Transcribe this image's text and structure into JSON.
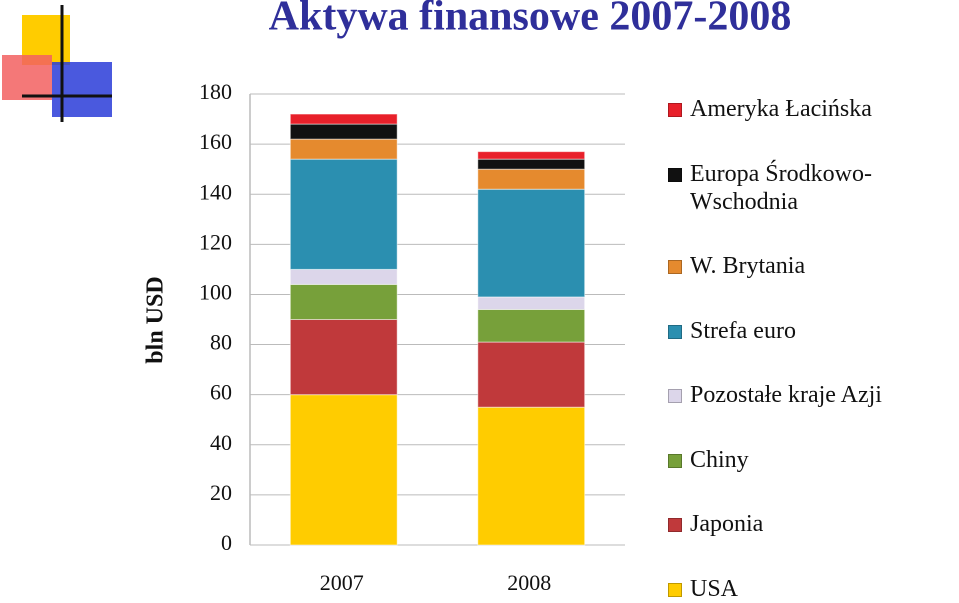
{
  "chart_data": {
    "type": "stacked_bar",
    "title": "Aktywa finansowe 2007-2008",
    "y_label": "bln USD",
    "categories": [
      "2007",
      "2008"
    ],
    "series": [
      {
        "name": "USA",
        "color": "#ffcc00",
        "values": [
          60,
          55
        ]
      },
      {
        "name": "Japonia",
        "color": "#c0393b",
        "values": [
          30,
          26
        ]
      },
      {
        "name": "Chiny",
        "color": "#77a03a",
        "values": [
          14,
          13
        ]
      },
      {
        "name": "Pozostałe kraje Azji",
        "color": "#dcd6ea",
        "values": [
          6,
          5
        ]
      },
      {
        "name": "Strefa euro",
        "color": "#2b8fb0",
        "values": [
          44,
          43
        ]
      },
      {
        "name": "W. Brytania",
        "color": "#e58a2e",
        "values": [
          8,
          8
        ]
      },
      {
        "name": "Europa Środkowo-Wschodnia",
        "color": "#111111",
        "values": [
          6,
          4
        ]
      },
      {
        "name": "Ameryka Łacińska",
        "color": "#e8202a",
        "values": [
          4,
          3
        ]
      }
    ],
    "ylim": [
      0,
      180
    ],
    "yticks": [
      0,
      20,
      40,
      60,
      80,
      100,
      120,
      140,
      160,
      180
    ],
    "grid": true
  }
}
